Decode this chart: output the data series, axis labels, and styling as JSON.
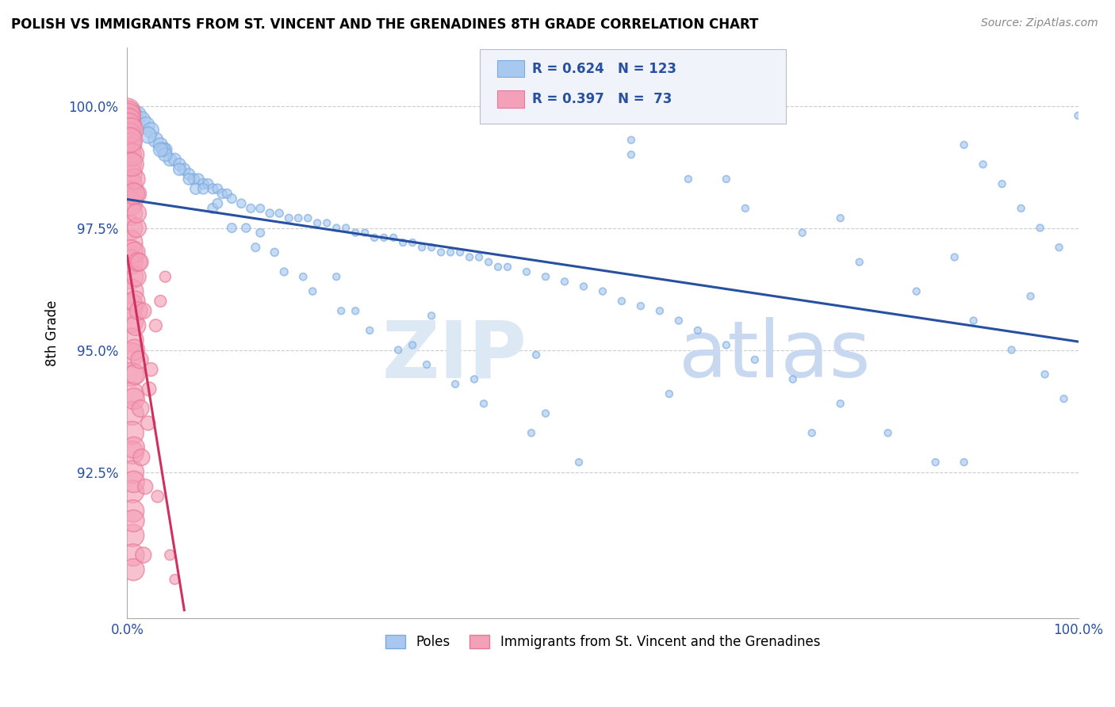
{
  "title": "POLISH VS IMMIGRANTS FROM ST. VINCENT AND THE GRENADINES 8TH GRADE CORRELATION CHART",
  "source": "Source: ZipAtlas.com",
  "ylabel": "8th Grade",
  "xlim": [
    0.0,
    100.0
  ],
  "ylim": [
    89.5,
    101.2
  ],
  "blue_R": 0.624,
  "blue_N": 123,
  "pink_R": 0.397,
  "pink_N": 73,
  "blue_color": "#A8C8F0",
  "pink_color": "#F4A0B8",
  "blue_edge_color": "#7AAADE",
  "pink_edge_color": "#E87898",
  "blue_line_color": "#2850A0",
  "pink_line_color": "#D03060",
  "legend_label_blue": "Poles",
  "legend_label_pink": "Immigrants from St. Vincent and the Grenadines",
  "watermark_zip": "ZIP",
  "watermark_atlas": "atlas",
  "blue_x": [
    0.5,
    1.0,
    1.5,
    2.0,
    2.5,
    3.0,
    3.5,
    4.0,
    4.5,
    5.0,
    5.5,
    6.0,
    6.5,
    7.0,
    7.5,
    8.0,
    8.5,
    9.0,
    9.5,
    10.0,
    10.5,
    11.0,
    12.0,
    13.0,
    14.0,
    15.0,
    16.0,
    17.0,
    18.0,
    19.0,
    20.0,
    21.0,
    22.0,
    23.0,
    24.0,
    25.0,
    26.0,
    27.0,
    28.0,
    29.0,
    30.0,
    31.0,
    32.0,
    33.0,
    34.0,
    35.0,
    36.0,
    37.0,
    38.0,
    39.0,
    40.0,
    42.0,
    44.0,
    46.0,
    48.0,
    50.0,
    52.0,
    54.0,
    56.0,
    58.0,
    60.0,
    63.0,
    66.0,
    70.0,
    75.0,
    80.0,
    85.0,
    88.0,
    90.0,
    92.0,
    94.0,
    96.0,
    98.0,
    100.0,
    2.2,
    3.8,
    5.5,
    7.2,
    9.0,
    11.0,
    13.5,
    16.5,
    19.5,
    22.5,
    25.5,
    28.5,
    31.5,
    34.5,
    37.5,
    42.5,
    47.5,
    53.0,
    59.0,
    65.0,
    71.0,
    77.0,
    83.0,
    89.0,
    93.0,
    96.5,
    98.5,
    4.0,
    6.5,
    9.5,
    12.5,
    15.5,
    18.5,
    24.0,
    30.0,
    36.5,
    44.0,
    53.0,
    63.0,
    75.0,
    87.0,
    95.0,
    3.5,
    8.0,
    14.0,
    22.0,
    32.0,
    43.0,
    57.0,
    72.0,
    88.0
  ],
  "blue_y": [
    99.8,
    99.8,
    99.7,
    99.6,
    99.5,
    99.3,
    99.2,
    99.1,
    98.9,
    98.9,
    98.8,
    98.7,
    98.6,
    98.5,
    98.5,
    98.4,
    98.4,
    98.3,
    98.3,
    98.2,
    98.2,
    98.1,
    98.0,
    97.9,
    97.9,
    97.8,
    97.8,
    97.7,
    97.7,
    97.7,
    97.6,
    97.6,
    97.5,
    97.5,
    97.4,
    97.4,
    97.3,
    97.3,
    97.3,
    97.2,
    97.2,
    97.1,
    97.1,
    97.0,
    97.0,
    97.0,
    96.9,
    96.9,
    96.8,
    96.7,
    96.7,
    96.6,
    96.5,
    96.4,
    96.3,
    96.2,
    96.0,
    95.9,
    95.8,
    95.6,
    95.4,
    95.1,
    94.8,
    94.4,
    93.9,
    93.3,
    92.7,
    99.2,
    98.8,
    98.4,
    97.9,
    97.5,
    97.1,
    99.8,
    99.4,
    99.1,
    98.7,
    98.3,
    97.9,
    97.5,
    97.1,
    96.6,
    96.2,
    95.8,
    95.4,
    95.0,
    94.7,
    94.3,
    93.9,
    93.3,
    92.7,
    99.0,
    98.5,
    97.9,
    97.4,
    96.8,
    96.2,
    95.6,
    95.0,
    94.5,
    94.0,
    99.0,
    98.5,
    98.0,
    97.5,
    97.0,
    96.5,
    95.8,
    95.1,
    94.4,
    93.7,
    99.3,
    98.5,
    97.7,
    96.9,
    96.1,
    99.1,
    98.3,
    97.4,
    96.5,
    95.7,
    94.9,
    94.1,
    93.3,
    92.7
  ],
  "pink_x": [
    0.05,
    0.08,
    0.1,
    0.12,
    0.15,
    0.15,
    0.18,
    0.2,
    0.2,
    0.22,
    0.25,
    0.25,
    0.28,
    0.3,
    0.3,
    0.3,
    0.32,
    0.35,
    0.35,
    0.38,
    0.4,
    0.4,
    0.42,
    0.45,
    0.45,
    0.48,
    0.5,
    0.5,
    0.52,
    0.55,
    0.55,
    0.58,
    0.6,
    0.6,
    0.62,
    0.65,
    0.65,
    0.68,
    0.7,
    0.7,
    0.75,
    0.8,
    0.8,
    0.85,
    0.9,
    0.95,
    1.0,
    1.0,
    1.1,
    1.2,
    1.3,
    1.4,
    1.5,
    1.7,
    1.9,
    2.2,
    2.5,
    3.0,
    3.5,
    4.0,
    5.0,
    0.4,
    0.6,
    0.8,
    1.0,
    1.3,
    1.7,
    2.3,
    3.2,
    4.5,
    0.3,
    0.5,
    0.7
  ],
  "pink_y": [
    99.9,
    99.85,
    99.8,
    99.7,
    99.6,
    99.4,
    99.3,
    99.2,
    99.0,
    98.8,
    98.6,
    98.4,
    98.2,
    98.0,
    97.8,
    97.5,
    97.2,
    97.0,
    96.8,
    96.5,
    96.2,
    95.9,
    95.6,
    95.2,
    94.9,
    94.5,
    94.1,
    93.7,
    93.3,
    92.9,
    92.5,
    92.1,
    91.7,
    91.2,
    90.8,
    90.5,
    91.5,
    92.3,
    93.0,
    94.0,
    95.0,
    96.0,
    97.0,
    94.5,
    95.5,
    96.5,
    97.5,
    98.2,
    96.8,
    95.8,
    94.8,
    93.8,
    92.8,
    90.8,
    92.2,
    93.5,
    94.6,
    95.5,
    96.0,
    96.5,
    90.3,
    99.5,
    99.0,
    98.5,
    97.8,
    96.8,
    95.8,
    94.2,
    92.0,
    90.8,
    99.3,
    98.8,
    98.2
  ]
}
